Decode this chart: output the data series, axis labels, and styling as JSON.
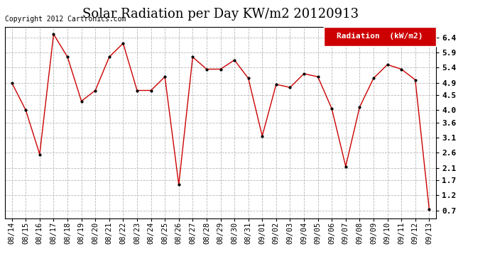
{
  "title": "Solar Radiation per Day KW/m2 20120913",
  "copyright_text": "Copyright 2012 Cartronics.com",
  "legend_label": "Radiation  (kW/m2)",
  "labels": [
    "08/14",
    "08/15",
    "08/16",
    "08/17",
    "08/18",
    "08/19",
    "08/20",
    "08/21",
    "08/22",
    "08/23",
    "08/24",
    "08/25",
    "08/26",
    "08/27",
    "08/28",
    "08/29",
    "08/30",
    "08/31",
    "09/01",
    "09/02",
    "09/03",
    "09/04",
    "09/05",
    "09/06",
    "09/07",
    "09/08",
    "09/09",
    "09/10",
    "09/11",
    "09/12",
    "09/13"
  ],
  "values": [
    4.9,
    4.0,
    2.55,
    6.5,
    5.75,
    4.3,
    4.65,
    5.75,
    6.2,
    4.65,
    4.65,
    5.1,
    1.55,
    5.75,
    5.35,
    5.35,
    5.65,
    5.05,
    3.15,
    4.85,
    4.75,
    5.2,
    5.1,
    4.05,
    2.15,
    4.1,
    5.05,
    5.5,
    5.35,
    5.0,
    0.75
  ],
  "line_color": "#cc0000",
  "marker_color": "#000000",
  "bg_color": "#ffffff",
  "grid_color": "#b0b0b0",
  "ylim_min": 0.45,
  "ylim_max": 6.75,
  "ytick_values": [
    0.7,
    1.2,
    1.7,
    2.1,
    2.6,
    3.1,
    3.6,
    4.0,
    4.5,
    4.9,
    5.4,
    5.9,
    6.4
  ],
  "ytick_labels": [
    "0.7",
    "1.2",
    "1.7",
    "2.1",
    "2.6",
    "3.1",
    "3.6",
    "4.0",
    "4.5",
    "4.9",
    "5.4",
    "5.9",
    "6.4"
  ],
  "legend_bg": "#cc0000",
  "legend_text_color": "#ffffff",
  "border_color": "#000000",
  "title_fontsize": 13,
  "copyright_fontsize": 7,
  "tick_fontsize": 7.5,
  "legend_fontsize": 8
}
